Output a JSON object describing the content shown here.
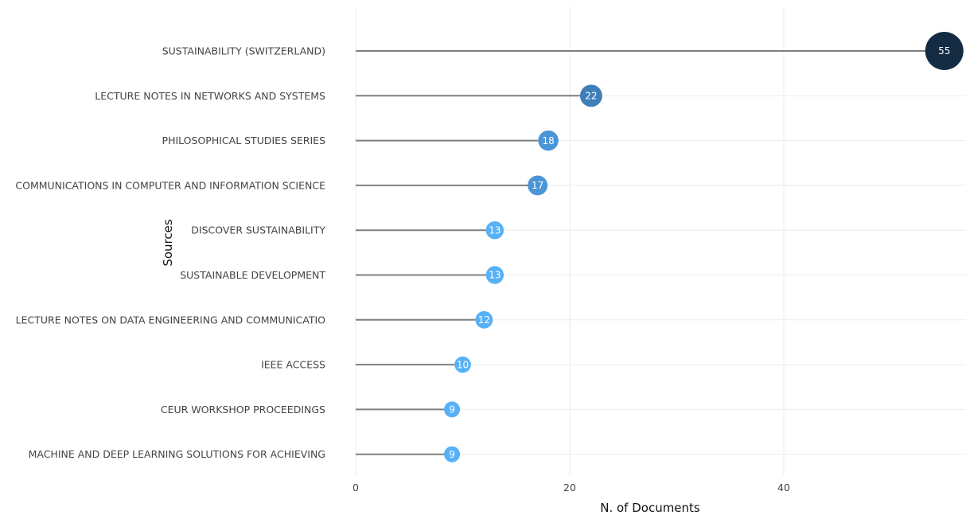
{
  "chart_data": {
    "type": "lollipop",
    "xlabel": "N. of Documents",
    "ylabel": "Sources",
    "xlim": [
      0,
      57
    ],
    "x_ticks": [
      0,
      20,
      40
    ],
    "grid": true,
    "categories": [
      "SUSTAINABILITY (SWITZERLAND)",
      "LECTURE NOTES IN NETWORKS AND SYSTEMS",
      "PHILOSOPHICAL STUDIES SERIES",
      "COMMUNICATIONS IN COMPUTER AND INFORMATION SCIENCE",
      "DISCOVER SUSTAINABILITY",
      "SUSTAINABLE DEVELOPMENT",
      "LECTURE NOTES ON DATA ENGINEERING AND COMMUNICATIO",
      "IEEE ACCESS",
      "CEUR WORKSHOP PROCEEDINGS",
      "MACHINE AND DEEP LEARNING SOLUTIONS FOR ACHIEVING"
    ],
    "values": [
      55,
      22,
      18,
      17,
      13,
      13,
      12,
      10,
      9,
      9
    ],
    "colors": {
      "stem": "#7f7f7f",
      "max": "#132b43",
      "mid": "#3f7fb9",
      "low": "#56b1f7",
      "grid": "#ebebeb"
    }
  }
}
